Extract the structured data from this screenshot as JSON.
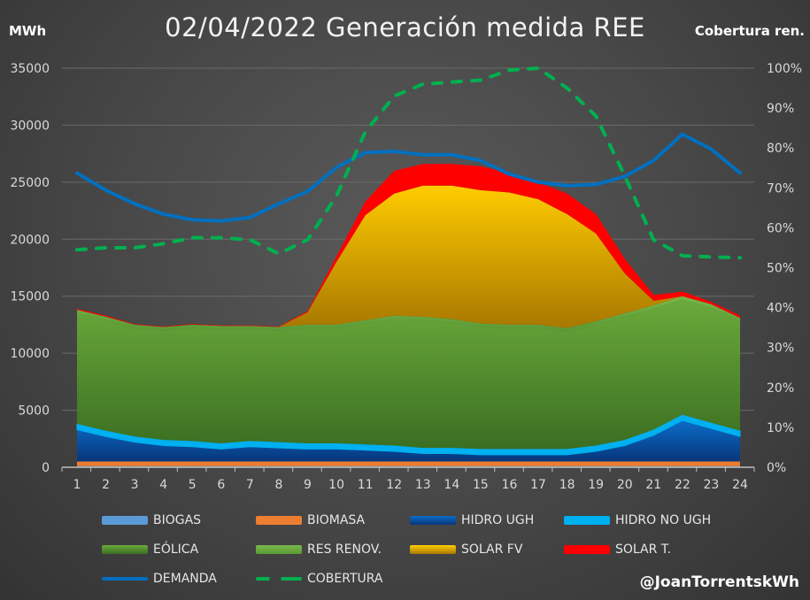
{
  "chart_data": {
    "type": "area",
    "title": "02/04/2022 Generación medida REE",
    "ylabel": "MWh",
    "y2label": "Cobertura ren.",
    "ylim": [
      0,
      35000
    ],
    "y2lim": [
      0,
      100
    ],
    "yticks": [
      "0",
      "5000",
      "10000",
      "15000",
      "20000",
      "25000",
      "30000",
      "35000"
    ],
    "y2ticks": [
      "0%",
      "10%",
      "20%",
      "30%",
      "40%",
      "50%",
      "60%",
      "70%",
      "80%",
      "90%",
      "100%"
    ],
    "x": [
      "1",
      "2",
      "3",
      "4",
      "5",
      "6",
      "7",
      "8",
      "9",
      "10",
      "11",
      "12",
      "13",
      "14",
      "15",
      "16",
      "17",
      "18",
      "19",
      "20",
      "21",
      "22",
      "23",
      "24"
    ],
    "grid": true,
    "legend_position": "bottom",
    "stacked_series": [
      {
        "name": "BIOGAS",
        "color": "#5b9bd5",
        "values": [
          100,
          100,
          100,
          100,
          100,
          100,
          100,
          100,
          100,
          100,
          100,
          100,
          100,
          100,
          100,
          100,
          100,
          100,
          100,
          100,
          100,
          100,
          100,
          100
        ]
      },
      {
        "name": "BIOMASA",
        "color": "#ed7d31",
        "values": [
          400,
          400,
          400,
          400,
          400,
          400,
          400,
          400,
          400,
          400,
          400,
          400,
          400,
          400,
          400,
          400,
          400,
          400,
          400,
          400,
          400,
          400,
          400,
          400
        ]
      },
      {
        "name": "HIDRO UGH",
        "color": "#0563c1",
        "values": [
          2800,
          2200,
          1700,
          1400,
          1300,
          1100,
          1300,
          1200,
          1100,
          1100,
          1000,
          900,
          700,
          700,
          600,
          600,
          600,
          600,
          900,
          1400,
          2300,
          3600,
          2900,
          2200
        ]
      },
      {
        "name": "HIDRO NO UGH",
        "color": "#00b0f0",
        "values": [
          500,
          500,
          500,
          500,
          500,
          500,
          500,
          500,
          500,
          500,
          500,
          500,
          500,
          500,
          500,
          500,
          500,
          500,
          500,
          500,
          500,
          500,
          500,
          500
        ]
      },
      {
        "name": "EÓLICA",
        "color": "#4e8a2e",
        "values": [
          9700,
          9700,
          9500,
          9600,
          9900,
          10000,
          9800,
          9800,
          10100,
          10100,
          10600,
          11100,
          11200,
          11000,
          10700,
          10600,
          10600,
          10300,
          10600,
          10800,
          10600,
          10100,
          10100,
          9600
        ]
      },
      {
        "name": "RES RENOV.",
        "color": "#70ad47",
        "values": [
          300,
          300,
          300,
          300,
          300,
          300,
          300,
          300,
          300,
          300,
          300,
          300,
          300,
          300,
          300,
          300,
          300,
          300,
          300,
          300,
          300,
          300,
          300,
          300
        ]
      },
      {
        "name": "SOLAR FV",
        "color": "#ffc000",
        "values": [
          0,
          0,
          0,
          0,
          0,
          0,
          0,
          0,
          1100,
          5500,
          9200,
          10700,
          11500,
          11700,
          11700,
          11600,
          11000,
          10000,
          7700,
          3500,
          400,
          0,
          0,
          0
        ]
      },
      {
        "name": "SOLAR T.",
        "color": "#ff0000",
        "values": [
          100,
          100,
          50,
          50,
          50,
          50,
          50,
          50,
          100,
          500,
          1200,
          2000,
          1900,
          1900,
          2100,
          1700,
          1500,
          1800,
          1700,
          1300,
          500,
          400,
          200,
          200
        ]
      }
    ],
    "line_series": [
      {
        "name": "DEMANDA",
        "color": "#0070c0",
        "axis": "left",
        "values": [
          25800,
          24300,
          23100,
          22200,
          21700,
          21600,
          21900,
          23100,
          24200,
          26300,
          27600,
          27700,
          27400,
          27400,
          26900,
          25700,
          25000,
          24700,
          24800,
          25500,
          26900,
          29200,
          27900,
          25800
        ]
      },
      {
        "name": "COBERTURA",
        "color": "#00b050",
        "axis": "right",
        "dashed": true,
        "values": [
          54.5,
          55,
          55,
          56,
          57.5,
          57.5,
          57,
          53.5,
          57,
          68,
          84,
          93,
          96,
          96.5,
          97,
          99.5,
          100,
          95,
          88,
          73,
          57,
          53,
          52.7,
          52.5
        ]
      }
    ]
  },
  "credit": "@JoanTorrentskWh"
}
